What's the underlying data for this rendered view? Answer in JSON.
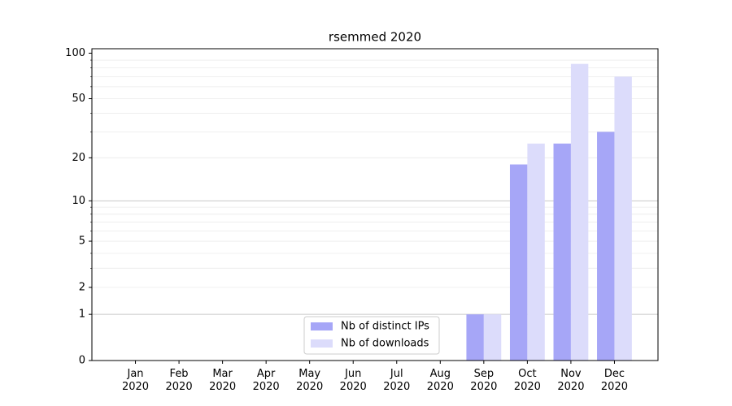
{
  "chart_data": {
    "type": "bar",
    "title": "rsemmed 2020",
    "categories": [
      "Jan 2020",
      "Feb 2020",
      "Mar 2020",
      "Apr 2020",
      "May 2020",
      "Jun 2020",
      "Jul 2020",
      "Aug 2020",
      "Sep 2020",
      "Oct 2020",
      "Nov 2020",
      "Dec 2020"
    ],
    "series": [
      {
        "name": "Nb of distinct IPs",
        "color": "#a6a6f7",
        "values": [
          0,
          0,
          0,
          0,
          0,
          0,
          0,
          0,
          1,
          18,
          25,
          30
        ]
      },
      {
        "name": "Nb of downloads",
        "color": "#dcdcfb",
        "values": [
          0,
          0,
          0,
          0,
          0,
          0,
          0,
          0,
          1,
          25,
          85,
          70
        ]
      }
    ],
    "yscale": "log1p",
    "ylim": [
      0,
      107
    ],
    "yticks": [
      0,
      1,
      2,
      5,
      10,
      20,
      50,
      100
    ],
    "minor_yticks": [
      2,
      3,
      4,
      5,
      6,
      7,
      8,
      9,
      20,
      30,
      40,
      50,
      60,
      70,
      80,
      90
    ],
    "major_grid": [
      1,
      10
    ],
    "legend": "lower center"
  }
}
